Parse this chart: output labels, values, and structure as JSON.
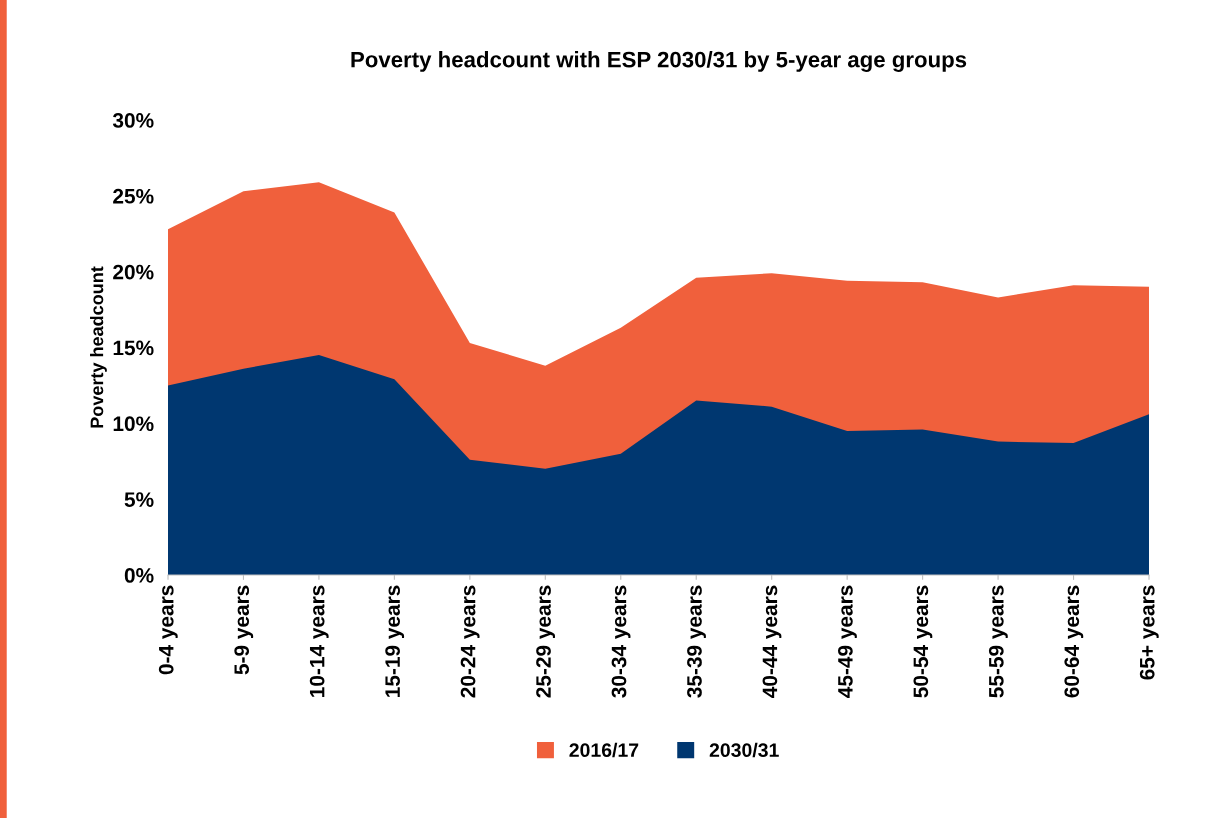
{
  "chart_data": {
    "type": "area",
    "title": "Poverty headcount with ESP 2030/31 by 5-year age groups",
    "ylabel": "Poverty headcount",
    "categories": [
      "0-4 years",
      "5-9 years",
      "10-14 years",
      "15-19 years",
      "20-24 years",
      "25-29 years",
      "30-34 years",
      "35-39 years",
      "40-44 years",
      "45-49 years",
      "50-54 years",
      "55-59 years",
      "60-64 years",
      "65+ years"
    ],
    "series": [
      {
        "name": "2016/17",
        "color": "#f0603c",
        "values": [
          22.8,
          25.3,
          25.9,
          23.9,
          15.3,
          13.8,
          16.3,
          19.6,
          19.9,
          19.4,
          19.3,
          18.3,
          19.1,
          19.0
        ]
      },
      {
        "name": "2030/31",
        "color": "#003770",
        "values": [
          12.5,
          13.6,
          14.5,
          12.9,
          7.6,
          7.0,
          8.0,
          11.5,
          11.1,
          9.5,
          9.6,
          8.8,
          8.7,
          10.6
        ]
      }
    ],
    "ylim": [
      0,
      30
    ],
    "yticks": [
      {
        "value": 0,
        "label": "0%"
      },
      {
        "value": 5,
        "label": "5%"
      },
      {
        "value": 10,
        "label": "10%"
      },
      {
        "value": 15,
        "label": "15%"
      },
      {
        "value": 20,
        "label": "20%"
      },
      {
        "value": 25,
        "label": "25%"
      },
      {
        "value": 30,
        "label": "30%"
      }
    ],
    "legend": "bottom",
    "grid": false
  }
}
